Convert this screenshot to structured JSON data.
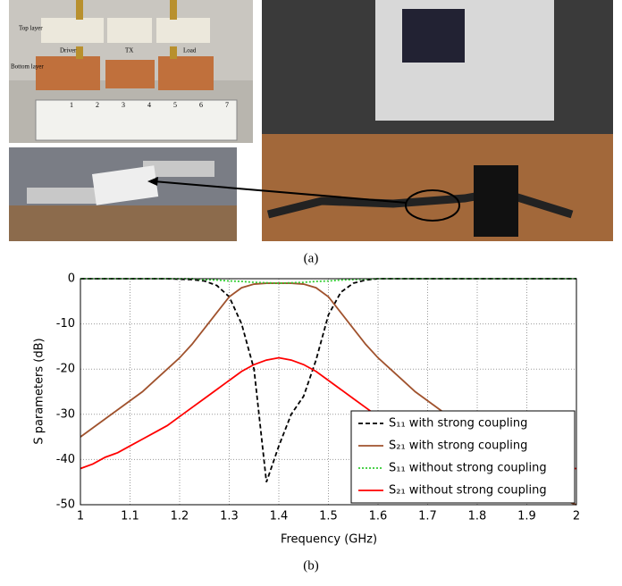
{
  "figure": {
    "photo_labels": [
      "Top layer",
      "Driver",
      "TX",
      "Load",
      "Bottom layer"
    ],
    "ruler_labels": [
      "1",
      "2",
      "3",
      "4",
      "5",
      "6",
      "7"
    ],
    "caption_a": "(a)",
    "caption_b": "(b)"
  },
  "chart_data": {
    "type": "line",
    "xlabel": "Frequency (GHz)",
    "ylabel": "S parameters (dB)",
    "x": [
      1,
      1.025,
      1.05,
      1.075,
      1.1,
      1.125,
      1.15,
      1.175,
      1.2,
      1.225,
      1.25,
      1.275,
      1.3,
      1.325,
      1.35,
      1.375,
      1.4,
      1.425,
      1.45,
      1.475,
      1.5,
      1.525,
      1.55,
      1.575,
      1.6,
      1.625,
      1.65,
      1.675,
      1.7,
      1.725,
      1.75,
      1.775,
      1.8,
      1.825,
      1.85,
      1.875,
      1.9,
      1.925,
      1.95,
      1.975,
      2
    ],
    "xlim": [
      1,
      2
    ],
    "xticks": [
      1,
      1.1,
      1.2,
      1.3,
      1.4,
      1.5,
      1.6,
      1.7,
      1.8,
      1.9,
      2
    ],
    "ylim": [
      -50,
      0
    ],
    "yticks": [
      0,
      -10,
      -20,
      -30,
      -40,
      -50
    ],
    "grid": true,
    "legend": "lower right",
    "series": [
      {
        "name": "S₁₁  with strong coupling",
        "color": "#000000",
        "line_style": "dashed",
        "values": [
          0,
          0,
          0,
          0,
          0,
          0,
          0,
          0,
          -0.1,
          -0.2,
          -0.5,
          -1.5,
          -4,
          -10,
          -20,
          -45,
          -37,
          -30,
          -26,
          -18,
          -8,
          -3,
          -1,
          -0.3,
          0,
          0,
          0,
          0,
          0,
          0,
          0,
          0,
          0,
          0,
          0,
          0,
          0,
          0,
          0,
          0,
          0
        ]
      },
      {
        "name": "S₂₁  with strong coupling",
        "color": "#a0522d",
        "line_style": "solid",
        "values": [
          -35,
          -33,
          -31,
          -29,
          -27,
          -25,
          -22.5,
          -20,
          -17.5,
          -14.5,
          -11,
          -7.5,
          -4,
          -2,
          -1.2,
          -1,
          -1,
          -1,
          -1.2,
          -2,
          -4,
          -7.5,
          -11,
          -14.5,
          -17.5,
          -20,
          -22.5,
          -25,
          -27,
          -29,
          -31,
          -33,
          -35,
          -37,
          -39,
          -41,
          -43,
          -45,
          -47,
          -49,
          -50
        ]
      },
      {
        "name": "S₁₁  without strong coupling",
        "color": "#33cc33",
        "line_style": "dotted",
        "values": [
          0,
          0,
          0,
          0,
          0,
          0,
          0,
          0,
          0,
          0,
          -0.2,
          -0.3,
          -0.5,
          -0.6,
          -0.8,
          -0.9,
          -1,
          -0.9,
          -0.8,
          -0.6,
          -0.5,
          -0.3,
          -0.2,
          -0.1,
          0,
          0,
          0,
          0,
          0,
          0,
          0,
          0,
          0,
          0,
          0,
          0,
          0,
          0,
          0,
          0,
          0
        ]
      },
      {
        "name": "S₂₁  without strong coupling",
        "color": "#ff0000",
        "line_style": "solid",
        "values": [
          -42,
          -41,
          -39.5,
          -38.5,
          -37,
          -35.5,
          -34,
          -32.5,
          -30.5,
          -28.5,
          -26.5,
          -24.5,
          -22.5,
          -20.5,
          -19,
          -18,
          -17.5,
          -18,
          -19,
          -20.5,
          -22.5,
          -24.5,
          -26.5,
          -28.5,
          -30.5,
          -32.5,
          -34,
          -35.5,
          -37,
          -38.5,
          -39.5,
          -41,
          -42,
          -42.5,
          -43,
          -43,
          -43,
          -43,
          -42.5,
          -42,
          -42
        ]
      }
    ]
  }
}
